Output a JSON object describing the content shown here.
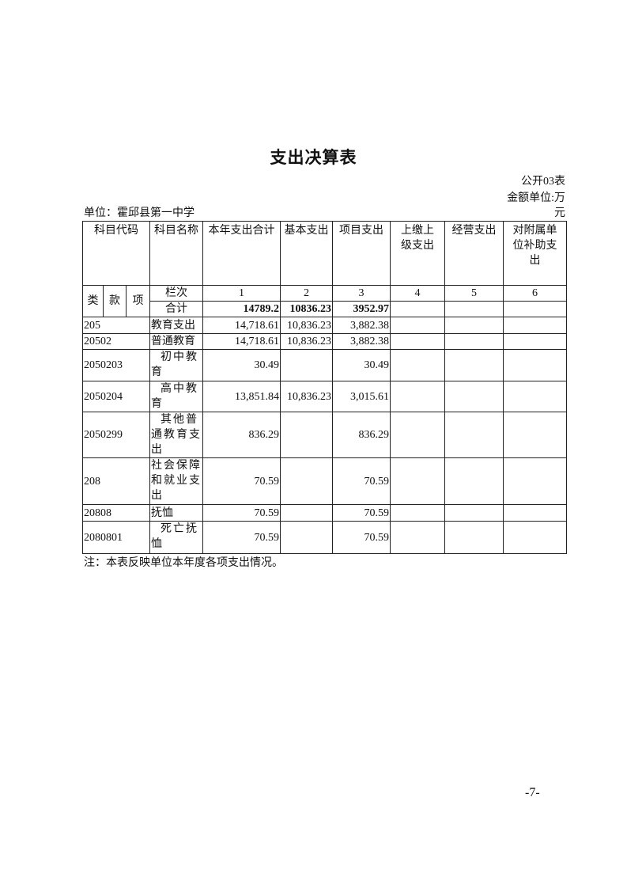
{
  "title": "支出决算表",
  "form_no": "公开03表",
  "amount_unit": "金额单位:万",
  "amount_unit_cont": "元",
  "unit_label": "单位：霍邱县第一中学",
  "headers": {
    "code": "科目代码",
    "name": "科目名称",
    "total": "本年支出合计",
    "basic": "基本支出",
    "project": "项目支出",
    "upper": "上缴上级支出",
    "business": "经营支出",
    "subsidy": "对附属单位补助支出"
  },
  "sub_headers": {
    "lei": "类",
    "kuan": "款",
    "xiang": "项",
    "lanci": "栏次",
    "cols": [
      "1",
      "2",
      "3",
      "4",
      "5",
      "6"
    ],
    "sum_label": "合计"
  },
  "sum_row": {
    "total": "14789.2",
    "basic": "10836.23",
    "project": "3952.97"
  },
  "rows": [
    {
      "code": "205",
      "name": "教育支出",
      "total": "14,718.61",
      "basic": "10,836.23",
      "project": "3,882.38"
    },
    {
      "code": "20502",
      "name": "普通教育",
      "total": "14,718.61",
      "basic": "10,836.23",
      "project": "3,882.38"
    },
    {
      "code": "2050203",
      "name": "初中教育",
      "total": "30.49",
      "basic": "",
      "project": "30.49"
    },
    {
      "code": "2050204",
      "name": "高中教育",
      "total": "13,851.84",
      "basic": "10,836.23",
      "project": "3,015.61"
    },
    {
      "code": "2050299",
      "name": "其他普通教育支出",
      "total": "836.29",
      "basic": "",
      "project": "836.29"
    },
    {
      "code": "208",
      "name": "社会保障和就业支出",
      "total": "70.59",
      "basic": "",
      "project": "70.59"
    },
    {
      "code": "20808",
      "name": "抚恤",
      "total": "70.59",
      "basic": "",
      "project": "70.59"
    },
    {
      "code": "2080801",
      "name": "死亡抚恤",
      "total": "70.59",
      "basic": "",
      "project": "70.59"
    }
  ],
  "note": "注：本表反映单位本年度各项支出情况。",
  "page_number": "-7-"
}
